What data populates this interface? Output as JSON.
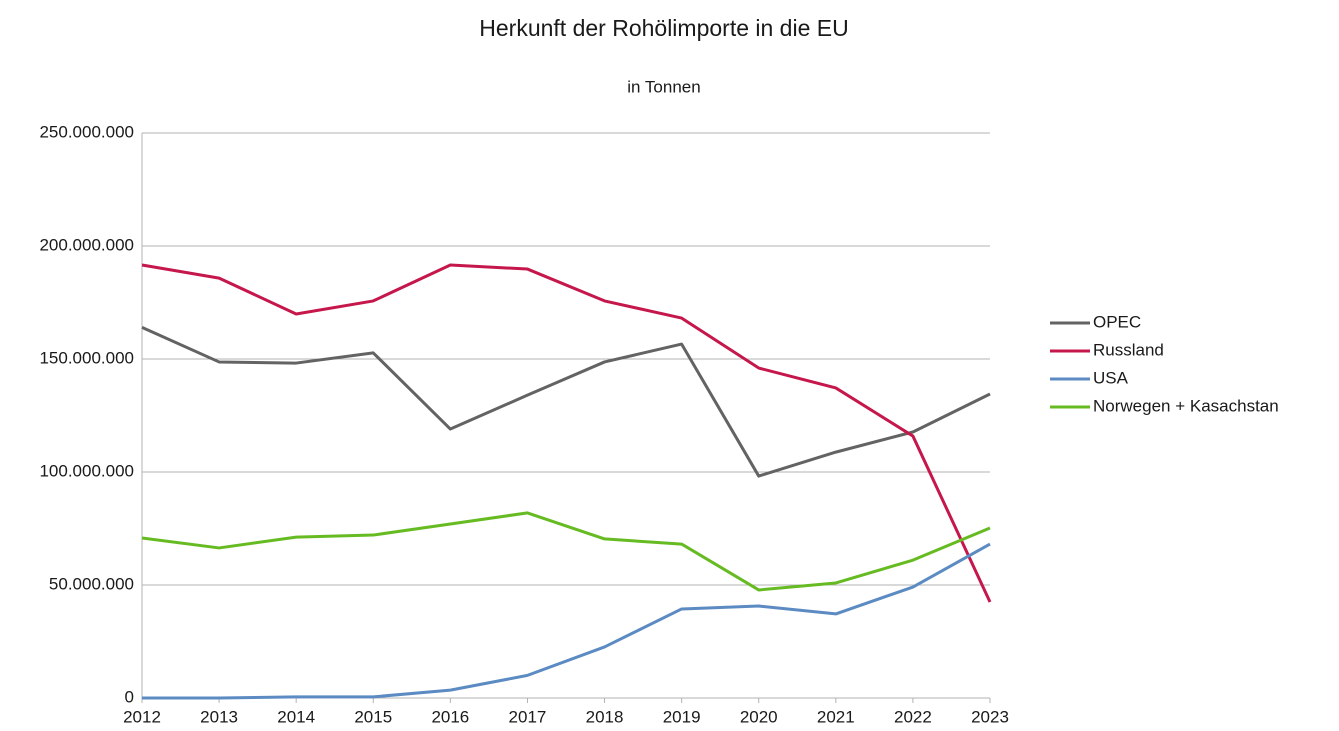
{
  "chart_data": {
    "type": "line",
    "title": "Herkunft der Rohölimporte in die EU",
    "subtitle": "in Tonnen",
    "categories": [
      "2012",
      "2013",
      "2014",
      "2015",
      "2016",
      "2017",
      "2018",
      "2019",
      "2020",
      "2021",
      "2022",
      "2023"
    ],
    "series": [
      {
        "name": "OPEC",
        "color": "#636363",
        "values": [
          164000000,
          148700000,
          148200000,
          152700000,
          119000000,
          134000000,
          148700000,
          156600000,
          98200000,
          108800000,
          117700000,
          134500000
        ]
      },
      {
        "name": "Russland",
        "color": "#c5174b",
        "values": [
          191600000,
          185800000,
          169900000,
          175700000,
          191600000,
          189800000,
          175700000,
          168100000,
          146000000,
          137200000,
          115900000,
          42500000
        ]
      },
      {
        "name": "USA",
        "color": "#5b8bc2",
        "values": [
          0,
          0,
          500000,
          500000,
          3500000,
          10000000,
          22600000,
          39400000,
          40700000,
          37200000,
          49100000,
          68100000
        ]
      },
      {
        "name": "Norwegen + Kasachstan",
        "color": "#66bb22",
        "values": [
          70800000,
          66400000,
          71200000,
          72100000,
          77000000,
          81900000,
          70400000,
          68100000,
          47800000,
          50900000,
          61000000,
          75200000
        ]
      }
    ],
    "ylim": [
      0,
      250000000
    ],
    "yticks": [
      0,
      {
        "value": 50000000,
        "label": "50.000.000"
      },
      {
        "value": 100000000,
        "label": "100.000.000"
      },
      {
        "value": 150000000,
        "label": "150.000.000"
      },
      {
        "value": 200000000,
        "label": "200.000.000"
      },
      {
        "value": 250000000,
        "label": "250.000.000"
      }
    ],
    "grid": true,
    "legend": "right"
  }
}
